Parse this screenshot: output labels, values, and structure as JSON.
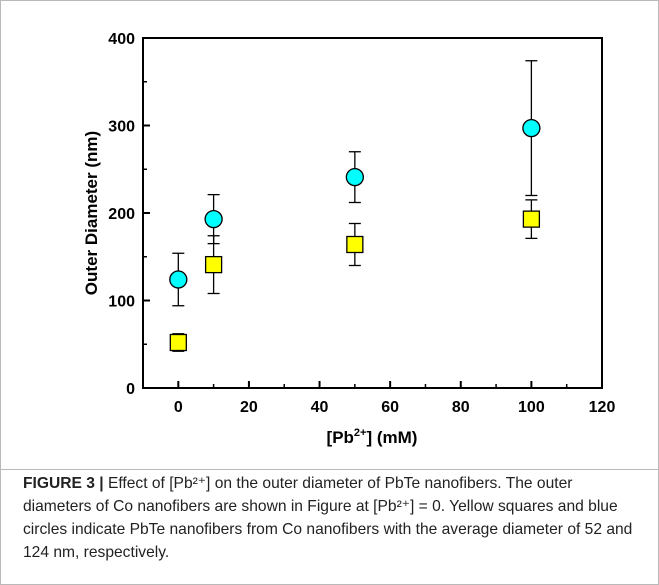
{
  "chart_data": {
    "type": "scatter",
    "xlabel": "[Pb",
    "xlabel_sup": "2+",
    "xlabel_tail": "] (mM)",
    "ylabel": "Outer Diameter (nm)",
    "xlim": [
      -10,
      120
    ],
    "ylim": [
      0,
      400
    ],
    "xticks": [
      "0",
      "20",
      "40",
      "60",
      "80",
      "100",
      "120"
    ],
    "yticks": [
      "0",
      "100",
      "200",
      "300",
      "400"
    ],
    "grid": false,
    "series": [
      {
        "marker": "square",
        "color": "#ffff00",
        "x": [
          0,
          10,
          50,
          100
        ],
        "y": [
          52,
          141,
          164,
          193
        ],
        "err": [
          10,
          33,
          24,
          22
        ]
      },
      {
        "marker": "circle",
        "color": "#00ffff",
        "x": [
          0,
          10,
          50,
          100
        ],
        "y": [
          124,
          193,
          241,
          297
        ],
        "err": [
          30,
          28,
          29,
          77
        ]
      }
    ]
  },
  "caption": {
    "label": "FIGURE 3 |",
    "text": " Effect of [Pb²⁺] on the outer diameter of PbTe nanofibers. The outer diameters of Co nanofibers are shown in Figure at [Pb²⁺] = 0. Yellow squares and blue circles indicate PbTe nanofibers from Co nanofibers with the average diameter of 52 and 124 nm, respectively."
  }
}
